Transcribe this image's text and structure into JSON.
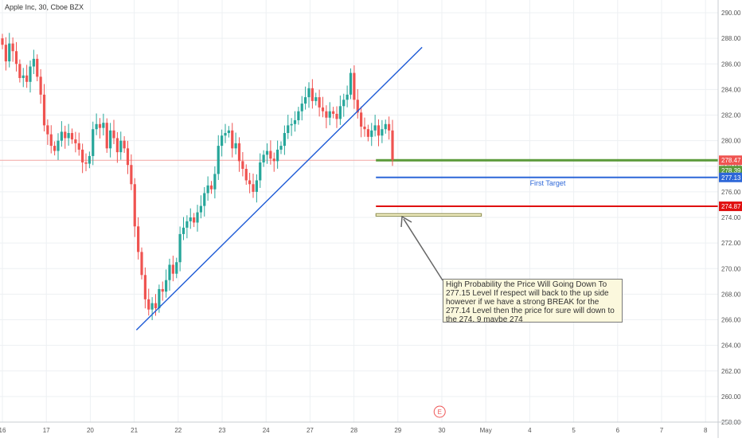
{
  "header": {
    "symbol_line": "Apple Inc, 30, Cboe BZX"
  },
  "annotations": {
    "first_target_label": "First Target",
    "note_text": "High Probability the Price Will Going Down To 277.15 Level If respect will back to the up side however if we have a strong BREAK for the 277.14 Level then the price for sure will down to the 274. 9 maybe 274",
    "earnings_marker": "E"
  },
  "colors": {
    "up_candle": "#26a69a",
    "down_candle": "#ef5350",
    "trendline": "#1e5bd6",
    "green_level": "#5b9a3a",
    "blue_level": "#2d67d8",
    "red_level": "#e01010",
    "zone_fill": "#f3efc6",
    "zone_border": "#8a8a4a",
    "label_bg_current": "#ef5350",
    "label_bg_green": "#5b9a3a",
    "label_bg_blue": "#2d67d8",
    "label_bg_red": "#e01010"
  },
  "chart_data": {
    "type": "candlestick",
    "title": "Apple Inc, 30, Cboe BZX",
    "ylim": [
      258,
      291
    ],
    "y_ticks": [
      "290.00",
      "288.00",
      "286.00",
      "284.00",
      "282.00",
      "280.00",
      "278.00",
      "276.00",
      "274.00",
      "272.00",
      "270.00",
      "268.00",
      "266.00",
      "264.00",
      "262.00",
      "260.00",
      "258.00"
    ],
    "x_ticks": [
      {
        "label": "16",
        "day": 0
      },
      {
        "label": "17",
        "day": 1
      },
      {
        "label": "20",
        "day": 2
      },
      {
        "label": "21",
        "day": 3
      },
      {
        "label": "22",
        "day": 4
      },
      {
        "label": "23",
        "day": 5
      },
      {
        "label": "24",
        "day": 6
      },
      {
        "label": "27",
        "day": 7
      },
      {
        "label": "28",
        "day": 8
      },
      {
        "label": "29",
        "day": 9
      },
      {
        "label": "30",
        "day": 10
      },
      {
        "label": "May",
        "day": 11
      },
      {
        "label": "4",
        "day": 12
      },
      {
        "label": "5",
        "day": 13
      },
      {
        "label": "6",
        "day": 14
      },
      {
        "label": "7",
        "day": 15
      },
      {
        "label": "8",
        "day": 16
      }
    ],
    "price_levels": [
      {
        "name": "current",
        "value": 278.47,
        "label": "278.47"
      },
      {
        "name": "green",
        "value": 278.39,
        "label": "278.39"
      },
      {
        "name": "first_target",
        "value": 277.13,
        "label": "277.13"
      },
      {
        "name": "red",
        "value": 274.87,
        "label": "274.87"
      }
    ],
    "zone": {
      "low": 274.1,
      "high": 274.3,
      "start_day": 8.5,
      "end_day": 10.9
    },
    "trendline": [
      {
        "day": 3.05,
        "price": 265.2
      },
      {
        "day": 9.55,
        "price": 287.3
      }
    ],
    "candles_hourly_closes": [
      287.5,
      286.2,
      287.6,
      287.0,
      286.0,
      284.9,
      285.1,
      284.6,
      285.8,
      286.4,
      285.0,
      283.6,
      281.2,
      280.5,
      279.6,
      279.2,
      280.0,
      280.7,
      280.2,
      280.6,
      280.1,
      279.8,
      279.3,
      278.3,
      278.2,
      278.8,
      280.9,
      281.3,
      281.0,
      281.4,
      279.4,
      280.8,
      280.2,
      279.1,
      280.0,
      279.4,
      278.1,
      276.6,
      273.3,
      271.3,
      269.5,
      267.6,
      266.8,
      267.3,
      266.9,
      268.4,
      268.2,
      269.1,
      270.3,
      269.6,
      270.5,
      272.7,
      273.2,
      273.7,
      274.0,
      273.6,
      274.4,
      274.9,
      275.9,
      276.5,
      276.2,
      277.4,
      279.6,
      280.4,
      280.6,
      280.8,
      279.4,
      279.8,
      278.4,
      277.8,
      276.9,
      276.6,
      276.0,
      276.9,
      278.3,
      278.9,
      279.2,
      278.6,
      278.4,
      279.3,
      279.6,
      280.6,
      281.2,
      281.3,
      281.6,
      282.3,
      282.9,
      283.4,
      284.1,
      283.1,
      283.4,
      282.6,
      282.3,
      281.8,
      282.3,
      282.1,
      281.7,
      282.7,
      283.2,
      283.6,
      285.3,
      283.2,
      282.2,
      281.1,
      280.9,
      280.3,
      280.8,
      281.2,
      280.4,
      280.9,
      281.3,
      280.8,
      278.5
    ]
  }
}
